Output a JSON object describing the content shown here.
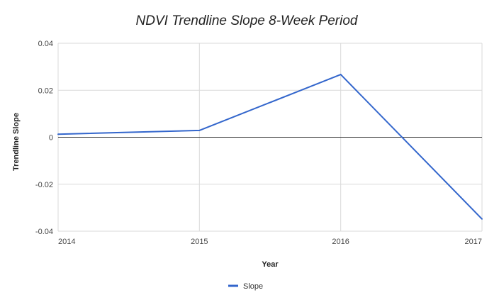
{
  "chart_data": {
    "type": "line",
    "title": "NDVI Trendline Slope 8-Week Period",
    "xlabel": "Year",
    "ylabel": "Trendline Slope",
    "x": [
      2014,
      2015,
      2016,
      2017
    ],
    "x_tick_labels": [
      "2014",
      "2015",
      "2016",
      "2017"
    ],
    "y_tick_labels": [
      "0.04",
      "0.02",
      "0",
      "-0.02",
      "-0.04"
    ],
    "ylim": [
      -0.04,
      0.04
    ],
    "xlim": [
      2014,
      2017
    ],
    "grid": true,
    "legend": "bottom",
    "series": [
      {
        "name": "Slope",
        "color": "#3366cc",
        "values": [
          0.0013,
          0.0029,
          0.0267,
          -0.0348
        ]
      }
    ]
  }
}
